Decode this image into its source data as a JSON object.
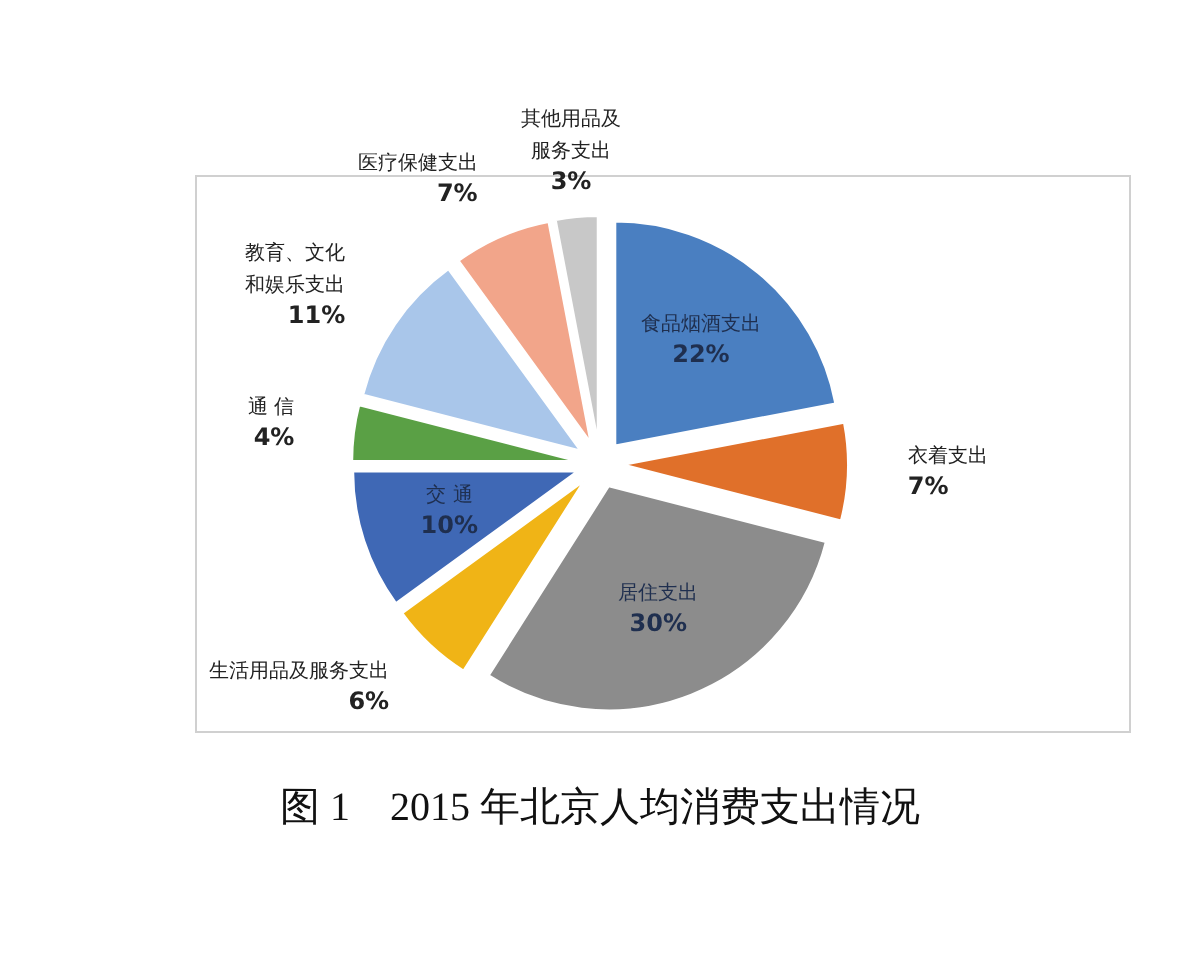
{
  "chart_data": {
    "type": "pie",
    "title": "图 1　2015 年北京人均消费支出情况",
    "categories": [
      "食品烟酒支出",
      "衣着支出",
      "居住支出",
      "生活用品及服务支出",
      "交 通",
      "通 信",
      "教育、文化和娱乐支出",
      "医疗保健支出",
      "其他用品及服务支出"
    ],
    "values": [
      22,
      7,
      30,
      6,
      10,
      4,
      11,
      7,
      3
    ],
    "value_labels": [
      "22%",
      "7%",
      "30%",
      "6%",
      "10%",
      "4%",
      "11%",
      "7%",
      "3%"
    ],
    "colors": [
      "#4a7fc1",
      "#e0702a",
      "#8c8c8c",
      "#f0b416",
      "#3f68b5",
      "#5aa045",
      "#a9c6ea",
      "#f2a58a",
      "#c8c8c8"
    ]
  }
}
